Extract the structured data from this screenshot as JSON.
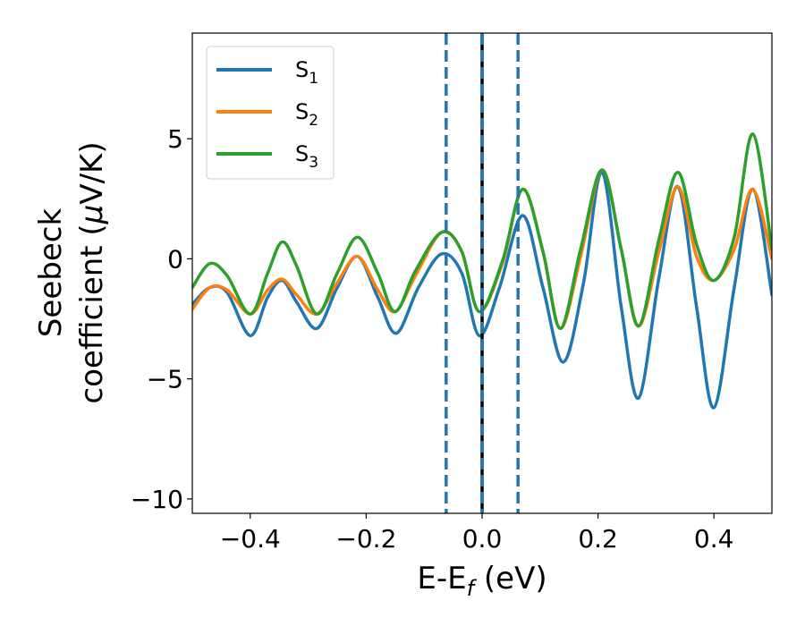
{
  "chart_data": {
    "type": "line",
    "xlabel": "E-E",
    "xlabel_sub": "f",
    "xlabel_unit": " (eV)",
    "ylabel_line1": "Seebeck",
    "ylabel_line2": "coefficient  (",
    "ylabel_mu": "μ",
    "ylabel_line2_end": "V/K)",
    "xlim": [
      -0.5,
      0.5
    ],
    "ylim": [
      -10.6,
      9.4
    ],
    "x_ticks": [
      -0.4,
      -0.2,
      0.0,
      0.2,
      0.4
    ],
    "x_tick_labels": [
      "−0.4",
      "−0.2",
      "0.0",
      "0.2",
      "0.4"
    ],
    "y_ticks": [
      5,
      0,
      -5,
      -10
    ],
    "y_tick_labels": [
      "5",
      "0",
      "−5",
      "−10"
    ],
    "grid": false,
    "legend_placement": "top-left",
    "vertical_lines": [
      {
        "x": -0.062,
        "style": "dashed",
        "color": "#1f77b4"
      },
      {
        "x": 0.0,
        "style": "solid",
        "color": "#000000"
      },
      {
        "x": 0.0,
        "style": "dashed",
        "color": "#1f77b4"
      },
      {
        "x": 0.062,
        "style": "dashed",
        "color": "#1f77b4"
      }
    ],
    "series": [
      {
        "name": "S",
        "sub": "1",
        "color": "#1f77b4",
        "points": [
          [
            -0.5,
            -1.9
          ],
          [
            -0.47,
            -1.2
          ],
          [
            -0.44,
            -1.4
          ],
          [
            -0.4,
            -3.2
          ],
          [
            -0.37,
            -1.6
          ],
          [
            -0.345,
            -0.9
          ],
          [
            -0.32,
            -1.8
          ],
          [
            -0.285,
            -2.9
          ],
          [
            -0.25,
            -1.2
          ],
          [
            -0.215,
            0.1
          ],
          [
            -0.18,
            -1.6
          ],
          [
            -0.148,
            -3.1
          ],
          [
            -0.11,
            -1.2
          ],
          [
            -0.07,
            0.2
          ],
          [
            -0.035,
            -0.6
          ],
          [
            -0.005,
            -3.2
          ],
          [
            0.03,
            -1.2
          ],
          [
            0.07,
            1.8
          ],
          [
            0.105,
            -1.2
          ],
          [
            0.14,
            -4.3
          ],
          [
            0.175,
            -1.0
          ],
          [
            0.207,
            3.6
          ],
          [
            0.24,
            -2.0
          ],
          [
            0.27,
            -5.8
          ],
          [
            0.305,
            -0.8
          ],
          [
            0.338,
            3.0
          ],
          [
            0.37,
            -2.0
          ],
          [
            0.4,
            -6.2
          ],
          [
            0.435,
            -1.2
          ],
          [
            0.467,
            2.9
          ],
          [
            0.5,
            -1.5
          ]
        ]
      },
      {
        "name": "S",
        "sub": "2",
        "color": "#ff7f0e",
        "points": [
          [
            -0.5,
            -2.1
          ],
          [
            -0.47,
            -1.2
          ],
          [
            -0.44,
            -1.3
          ],
          [
            -0.4,
            -2.3
          ],
          [
            -0.37,
            -1.3
          ],
          [
            -0.345,
            -0.85
          ],
          [
            -0.32,
            -1.5
          ],
          [
            -0.285,
            -2.3
          ],
          [
            -0.25,
            -1.0
          ],
          [
            -0.215,
            0.1
          ],
          [
            -0.18,
            -1.3
          ],
          [
            -0.15,
            -2.2
          ],
          [
            -0.115,
            -0.7
          ],
          [
            -0.07,
            1.1
          ],
          [
            -0.035,
            0.3
          ],
          [
            -0.005,
            -2.2
          ],
          [
            0.035,
            -0.2
          ],
          [
            0.07,
            2.9
          ],
          [
            0.105,
            0.3
          ],
          [
            0.135,
            -2.9
          ],
          [
            0.17,
            0.1
          ],
          [
            0.207,
            3.7
          ],
          [
            0.24,
            0.4
          ],
          [
            0.27,
            -2.8
          ],
          [
            0.305,
            0.3
          ],
          [
            0.338,
            3.0
          ],
          [
            0.37,
            0.1
          ],
          [
            0.4,
            -0.9
          ],
          [
            0.435,
            0.4
          ],
          [
            0.467,
            2.9
          ],
          [
            0.5,
            0.0
          ]
        ]
      },
      {
        "name": "S",
        "sub": "3",
        "color": "#2ca02c",
        "points": [
          [
            -0.5,
            -1.2
          ],
          [
            -0.47,
            -0.2
          ],
          [
            -0.44,
            -0.7
          ],
          [
            -0.4,
            -2.3
          ],
          [
            -0.37,
            -0.6
          ],
          [
            -0.345,
            0.7
          ],
          [
            -0.32,
            -0.3
          ],
          [
            -0.285,
            -2.3
          ],
          [
            -0.25,
            -0.6
          ],
          [
            -0.215,
            0.9
          ],
          [
            -0.18,
            -0.6
          ],
          [
            -0.15,
            -2.2
          ],
          [
            -0.115,
            -0.5
          ],
          [
            -0.07,
            1.1
          ],
          [
            -0.035,
            0.3
          ],
          [
            -0.005,
            -2.2
          ],
          [
            0.035,
            -0.1
          ],
          [
            0.07,
            2.9
          ],
          [
            0.105,
            0.3
          ],
          [
            0.135,
            -2.9
          ],
          [
            0.17,
            0.4
          ],
          [
            0.207,
            3.7
          ],
          [
            0.24,
            0.4
          ],
          [
            0.27,
            -2.8
          ],
          [
            0.305,
            0.8
          ],
          [
            0.338,
            3.6
          ],
          [
            0.37,
            0.6
          ],
          [
            0.4,
            -0.9
          ],
          [
            0.435,
            0.9
          ],
          [
            0.467,
            5.2
          ],
          [
            0.5,
            0.4
          ]
        ]
      }
    ]
  }
}
